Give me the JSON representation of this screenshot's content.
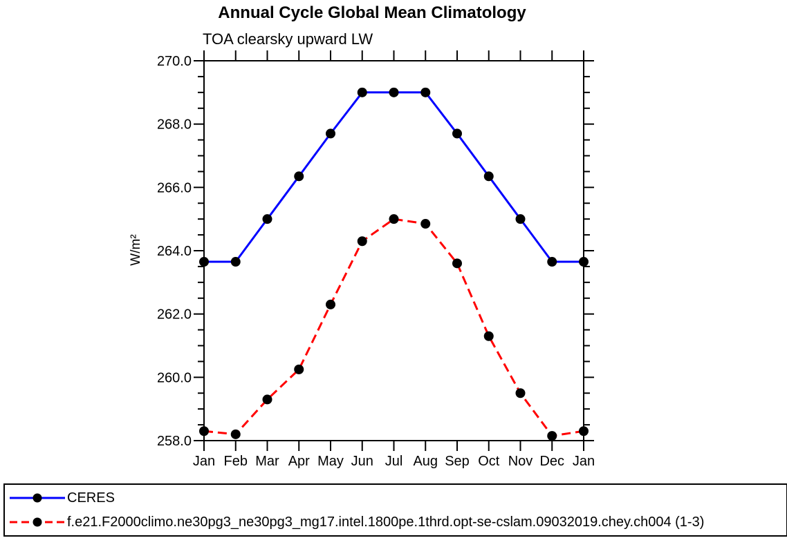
{
  "chart_data": {
    "type": "line",
    "title": "Annual Cycle Global Mean Climatology",
    "subtitle": "TOA clearsky upward LW",
    "ylabel": "W/m²",
    "xlabel": "",
    "categories": [
      "Jan",
      "Feb",
      "Mar",
      "Apr",
      "May",
      "Jun",
      "Jul",
      "Aug",
      "Sep",
      "Oct",
      "Nov",
      "Dec",
      "Jan"
    ],
    "ylim": [
      258.0,
      270.0
    ],
    "ytick_interval": 2.0,
    "yminor_interval": 0.5,
    "ytick_labels": [
      "258.0",
      "260.0",
      "262.0",
      "264.0",
      "266.0",
      "268.0",
      "270.0"
    ],
    "grid": false,
    "legend_position": "bottom",
    "axis_color": "#000000",
    "marker": "filled-circle",
    "marker_color": "#000000",
    "series": [
      {
        "name": "CERES",
        "color": "#0000ff",
        "line_style": "solid",
        "values": [
          263.65,
          263.65,
          265.0,
          266.35,
          267.7,
          269.0,
          269.0,
          269.0,
          267.7,
          266.35,
          265.0,
          263.65,
          263.65
        ]
      },
      {
        "name": "f.e21.F2000climo.ne30pg3_ne30pg3_mg17.intel.1800pe.1thrd.opt-se-cslam.09032019.chey.ch004 (1-3)",
        "color": "#ff0000",
        "line_style": "dashed",
        "values": [
          258.3,
          258.2,
          259.3,
          260.25,
          262.3,
          264.3,
          265.0,
          264.85,
          263.6,
          261.3,
          259.5,
          258.15,
          258.3
        ]
      }
    ]
  }
}
